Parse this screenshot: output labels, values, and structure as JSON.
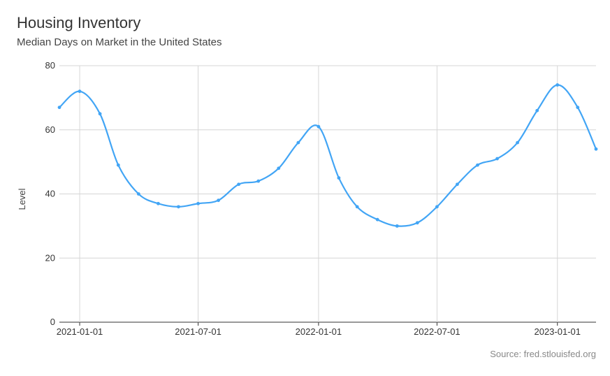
{
  "chart_data": {
    "type": "line",
    "title": "Housing Inventory",
    "subtitle": "Median Days on Market in the United States",
    "ylabel": "Level",
    "xlabel": "",
    "source": "Source: fred.stlouisfed.org",
    "ylim": [
      0,
      80
    ],
    "y_ticks": [
      0,
      20,
      40,
      60,
      80
    ],
    "x_ticks": [
      "2021-01-01",
      "2021-07-01",
      "2022-01-01",
      "2022-07-01",
      "2023-01-01"
    ],
    "grid": true,
    "line_color": "#42a5f5",
    "series": [
      {
        "x": [
          "2020-12-01",
          "2021-01-01",
          "2021-02-01",
          "2021-03-01",
          "2021-04-01",
          "2021-05-01",
          "2021-06-01",
          "2021-07-01",
          "2021-08-01",
          "2021-09-01",
          "2021-10-01",
          "2021-11-01",
          "2021-12-01",
          "2022-01-01",
          "2022-02-01",
          "2022-03-01",
          "2022-04-01",
          "2022-05-01",
          "2022-06-01",
          "2022-07-01",
          "2022-08-01",
          "2022-09-01",
          "2022-10-01",
          "2022-11-01",
          "2022-12-01",
          "2023-01-01",
          "2023-02-01",
          "2023-03-01"
        ],
        "values": [
          67,
          72,
          65,
          49,
          40,
          37,
          36,
          37,
          38,
          43,
          44,
          48,
          56,
          61,
          45,
          36,
          32,
          30,
          31,
          36,
          43,
          49,
          51,
          56,
          66,
          74,
          67,
          54
        ]
      }
    ]
  }
}
